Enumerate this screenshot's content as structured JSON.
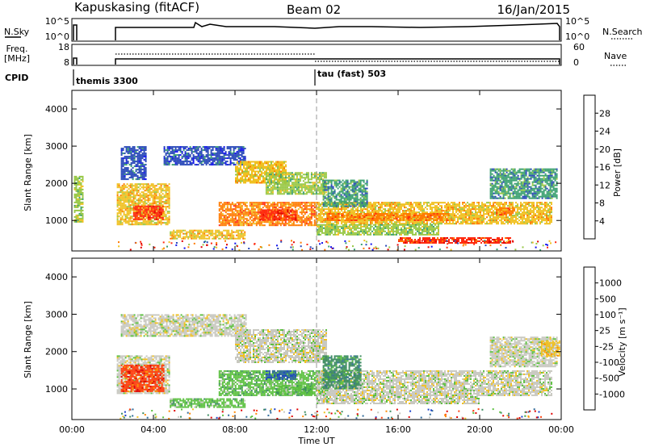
{
  "header": {
    "station": "Kapuskasing (fitACF)",
    "beam": "Beam 02",
    "date": "16/Jan/2015"
  },
  "strip_labels": {
    "nsky": "N.Sky",
    "nsky_ticks": [
      "10^5",
      "10^0"
    ],
    "nsearch": "N.Search",
    "nsearch_ticks": [
      "10^5",
      "10^0"
    ],
    "freq_line1": "Freq.",
    "freq_line2": "[MHz]",
    "freq_ticks": [
      "18",
      "8"
    ],
    "nave": "Nave",
    "nave_ticks": [
      "60",
      "0"
    ],
    "cpid": "CPID",
    "cpid_modes": [
      {
        "label": "themis 3300",
        "start_hour": 0
      },
      {
        "label": "tau (fast) 503",
        "start_hour": 12
      }
    ]
  },
  "axis_text": {
    "ylabel": "Slant Range [km]",
    "xlabel": "Time UT",
    "y_ticks": [
      "1000",
      "2000",
      "3000",
      "4000"
    ],
    "x_ticks": [
      "00:00",
      "04:00",
      "08:00",
      "12:00",
      "16:00",
      "20:00",
      "00:00"
    ]
  },
  "chart_data": [
    {
      "type": "heatmap",
      "panel": "power",
      "x_range_hours": [
        0,
        24
      ],
      "ylim": [
        180,
        4500
      ],
      "y_ticks": [
        1000,
        2000,
        3000,
        4000
      ],
      "colorbar": {
        "title": "Power [dB]",
        "levels": [
          4,
          8,
          12,
          16,
          20,
          24,
          28
        ],
        "colors": [
          "#1010ee",
          "#2848b8",
          "#3aa070",
          "#98c845",
          "#f0c020",
          "#ff7a00",
          "#ff2a10",
          "#e00000"
        ]
      },
      "echo_regions": [
        {
          "t0": 0.1,
          "t1": 0.5,
          "r0": 950,
          "r1": 2200,
          "level": 3
        },
        {
          "t0": 2.2,
          "t1": 4.8,
          "r0": 900,
          "r1": 2000,
          "level": 4
        },
        {
          "t0": 3.0,
          "t1": 4.5,
          "r0": 1050,
          "r1": 1400,
          "level": 6
        },
        {
          "t0": 2.4,
          "t1": 3.6,
          "r0": 2100,
          "r1": 3000,
          "level": 1
        },
        {
          "t0": 4.5,
          "t1": 8.5,
          "r0": 2500,
          "r1": 3000,
          "level": 1
        },
        {
          "t0": 8.0,
          "t1": 10.5,
          "r0": 2000,
          "r1": 2600,
          "level": 4
        },
        {
          "t0": 9.5,
          "t1": 12.5,
          "r0": 1700,
          "r1": 2300,
          "level": 3
        },
        {
          "t0": 7.2,
          "t1": 12.0,
          "r0": 850,
          "r1": 1500,
          "level": 5
        },
        {
          "t0": 9.2,
          "t1": 11.0,
          "r0": 1000,
          "r1": 1300,
          "level": 6
        },
        {
          "t0": 4.8,
          "t1": 8.5,
          "r0": 500,
          "r1": 750,
          "level": 4
        },
        {
          "t0": 12.0,
          "t1": 23.5,
          "r0": 900,
          "r1": 1500,
          "level": 4
        },
        {
          "t0": 12.5,
          "t1": 18.5,
          "r0": 1000,
          "r1": 1200,
          "level": 5
        },
        {
          "t0": 12.3,
          "t1": 14.5,
          "r0": 1400,
          "r1": 2100,
          "level": 2
        },
        {
          "t0": 12.0,
          "t1": 18.0,
          "r0": 600,
          "r1": 900,
          "level": 3
        },
        {
          "t0": 16.0,
          "t1": 21.5,
          "r0": 400,
          "r1": 550,
          "level": 6
        },
        {
          "t0": 20.5,
          "t1": 23.8,
          "r0": 1600,
          "r1": 2400,
          "level": 2
        },
        {
          "t0": 20.8,
          "t1": 21.6,
          "r0": 1150,
          "r1": 1350,
          "level": 5
        }
      ]
    },
    {
      "type": "heatmap",
      "panel": "velocity",
      "x_range_hours": [
        0,
        24
      ],
      "ylim": [
        180,
        4500
      ],
      "y_ticks": [
        1000,
        2000,
        3000,
        4000
      ],
      "colorbar": {
        "title": "Velocity [m s⁻¹]",
        "levels": [
          "1000",
          "500",
          "100",
          "25",
          "-25",
          "-100",
          "-500",
          "-1000"
        ],
        "colors": [
          "#1a3fc8",
          "#2f6a9a",
          "#3c8c60",
          "#5cc040",
          "#c8c8c0",
          "#f0c020",
          "#ff8800",
          "#ff4010",
          "#e00000"
        ]
      },
      "echo_regions": [
        {
          "t0": 2.2,
          "t1": 4.8,
          "r0": 900,
          "r1": 1900,
          "level": 4
        },
        {
          "t0": 2.4,
          "t1": 4.5,
          "r0": 950,
          "r1": 1650,
          "level": 7
        },
        {
          "t0": 2.4,
          "t1": 8.5,
          "r0": 2400,
          "r1": 3000,
          "level": 4
        },
        {
          "t0": 8.0,
          "t1": 12.5,
          "r0": 1700,
          "r1": 2600,
          "level": 4
        },
        {
          "t0": 7.2,
          "t1": 12.6,
          "r0": 850,
          "r1": 1500,
          "level": 3
        },
        {
          "t0": 9.5,
          "t1": 11.0,
          "r0": 1250,
          "r1": 1500,
          "level": 1
        },
        {
          "t0": 10.0,
          "t1": 11.8,
          "r0": 850,
          "r1": 1100,
          "level": 3
        },
        {
          "t0": 4.8,
          "t1": 8.5,
          "r0": 500,
          "r1": 750,
          "level": 3
        },
        {
          "t0": 12.0,
          "t1": 23.5,
          "r0": 850,
          "r1": 1500,
          "level": 4
        },
        {
          "t0": 12.3,
          "t1": 14.2,
          "r0": 1000,
          "r1": 1900,
          "level": 2
        },
        {
          "t0": 12.0,
          "t1": 20.0,
          "r0": 600,
          "r1": 850,
          "level": 4
        },
        {
          "t0": 20.5,
          "t1": 23.8,
          "r0": 1600,
          "r1": 2400,
          "level": 4
        },
        {
          "t0": 23.0,
          "t1": 23.9,
          "r0": 1900,
          "r1": 2300,
          "level": 5
        }
      ]
    }
  ]
}
